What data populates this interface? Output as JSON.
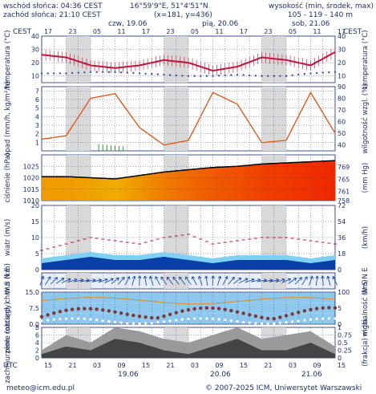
{
  "header": {
    "sunrise": "wschód słońca: 04:36 CEST",
    "sunset": "zachód słońca: 21:10 CEST",
    "coords": "16°59'9\"E, 51°4'51\"N",
    "grid": "(x=181, y=436)",
    "altitude_title": "wysokość (min, środek, max)",
    "altitude_values": "105 - 119 - 140 m",
    "day1": "czw, 19.06",
    "day2": "pią, 20.06",
    "day3": "sob, 21.06",
    "tz_left": "CEST",
    "tz_right": "CEST"
  },
  "footer": {
    "email": "meteo@icm.edu.pl",
    "copyright": "© 2007-2025 ICM, Uniwersytet Warszawski",
    "tz": "UTC",
    "date1": "19.06",
    "date2": "20.06",
    "date3": "21.06"
  },
  "colors": {
    "temp": "#c0143c",
    "humidity": "#e05a1e",
    "precip": "#2a9a2a",
    "pressure_line": "#000000",
    "wind_dark": "#0b3fa8",
    "wind_light": "#7fd0f5",
    "visibility": "#e08a1e",
    "cloud_dark": "#444444",
    "cloud_light": "#9a9a9a",
    "fog": "#ffffff"
  },
  "chart_data": [
    {
      "type": "line",
      "name": "temperatura",
      "ylabel": "temperatura (°C)",
      "ylabel_right": "temperatura (°C)",
      "yticks": [
        10,
        20,
        30,
        40
      ],
      "ylim": [
        5,
        40
      ],
      "x_hours": [
        0,
        6,
        12,
        18,
        24,
        30,
        36,
        42,
        48,
        54,
        60,
        66,
        72
      ],
      "temp": [
        26,
        24,
        18,
        16,
        18,
        22,
        20,
        14,
        17,
        24,
        22,
        18,
        28
      ],
      "dewpoint": [
        12,
        12,
        13,
        13,
        12,
        11,
        10,
        10,
        11,
        10,
        10,
        12,
        13
      ]
    },
    {
      "type": "line",
      "name": "opad-wilgotnosc",
      "ylabel": "opad (mm/h, kg/m²/h)",
      "ylabel_right": "wilgotność wzgl. (%)",
      "yticks": [
        1,
        2,
        3,
        4,
        5,
        6,
        7
      ],
      "yticks_right": [
        40,
        50,
        60,
        70,
        80,
        90
      ],
      "ylim": [
        0,
        7.5
      ],
      "ylim_right": [
        35,
        90
      ],
      "x_hours": [
        0,
        6,
        12,
        18,
        24,
        30,
        36,
        42,
        48,
        54,
        60,
        66,
        72
      ],
      "humidity": [
        45,
        48,
        80,
        84,
        55,
        40,
        44,
        85,
        75,
        42,
        44,
        85,
        50
      ],
      "precip": [
        0,
        0,
        0.5,
        0.2,
        0,
        0,
        0,
        0,
        0,
        0,
        0,
        0,
        0
      ]
    },
    {
      "type": "area",
      "name": "cisnienie",
      "ylabel": "ciśnienie (hPa)",
      "ylabel_right": "(mm Hg)",
      "yticks": [
        1010,
        1015,
        1020,
        1025
      ],
      "yticks_right": [
        758,
        761,
        765,
        769
      ],
      "ylim": [
        1010,
        1030
      ],
      "x_hours": [
        0,
        6,
        12,
        18,
        24,
        30,
        36,
        42,
        48,
        54,
        60,
        66,
        72
      ],
      "pressure": [
        1020.5,
        1020.5,
        1020,
        1019.5,
        1021,
        1022.5,
        1023.5,
        1024.5,
        1025,
        1026,
        1026.5,
        1027,
        1027.5
      ]
    },
    {
      "type": "area",
      "name": "wiatr",
      "ylabel": "wiatr (m/s)",
      "ylabel_right": "(km/h)",
      "yticks": [
        0,
        5,
        10,
        15,
        20
      ],
      "yticks_right": [
        0,
        18,
        36,
        54,
        72
      ],
      "ylim": [
        0,
        20
      ],
      "x_hours": [
        0,
        6,
        12,
        18,
        24,
        30,
        36,
        42,
        48,
        54,
        60,
        66,
        72
      ],
      "wind": [
        2,
        3,
        4,
        3,
        3,
        4,
        3,
        2,
        3,
        3,
        3,
        2,
        3
      ],
      "gusts": [
        6,
        8,
        10,
        9,
        8,
        10,
        11,
        8,
        9,
        10,
        10,
        9,
        8
      ]
    },
    {
      "type": "scatter",
      "name": "kierunek-wiatru",
      "ylabel": "W S N E",
      "ylabel_right": "W S N E"
    },
    {
      "type": "scatter",
      "name": "chmury-widzialnosc",
      "ylabel": "pion. rozciągł. chmur (km)",
      "ylabel_right": "widzialność (km)",
      "yticks": [
        0,
        2.5,
        5,
        7.5,
        10,
        12.5,
        15
      ],
      "yticks_right": [
        0,
        1,
        5,
        10,
        20,
        100
      ],
      "ylim": [
        0,
        15
      ]
    },
    {
      "type": "area",
      "name": "zachmurzenie",
      "ylabel": "zachmurzenie (oktanty)",
      "ylabel_right": "(frakcja) mgła",
      "yticks": [
        0,
        2,
        4,
        6,
        8
      ],
      "yticks_right": [
        0,
        0.25,
        0.5,
        0.75,
        1
      ],
      "ylim": [
        0,
        8
      ],
      "x_hours": [
        0,
        6,
        12,
        18,
        24,
        30,
        36,
        42,
        48,
        54,
        60,
        66,
        72
      ],
      "cloud_total": [
        2,
        6,
        4,
        8,
        7,
        5,
        4,
        6,
        8,
        5,
        6,
        7,
        3
      ],
      "cloud_low": [
        1,
        3,
        2,
        5,
        4,
        2,
        1,
        3,
        5,
        2,
        2,
        4,
        1
      ]
    }
  ],
  "axis": {
    "top_cest_ticks": [
      "17",
      "23",
      "05",
      "11",
      "17",
      "23",
      "05",
      "11",
      "17",
      "23",
      "05",
      "11",
      "17"
    ],
    "bottom_utc_ticks": [
      "15",
      "21",
      "03",
      "09",
      "15",
      "21",
      "03",
      "09",
      "15",
      "21",
      "03",
      "09",
      "15"
    ]
  }
}
